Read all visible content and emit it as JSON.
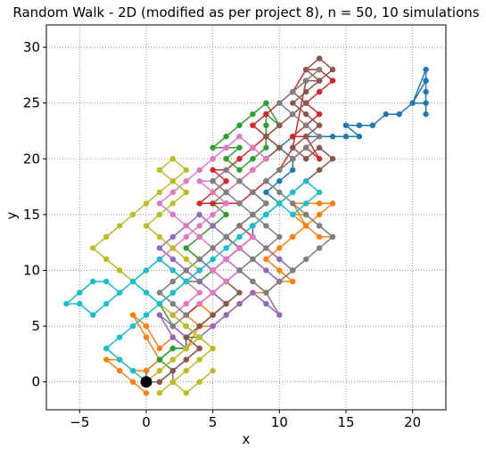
{
  "chart_data": {
    "type": "line",
    "title": "Random Walk - 2D (modified as per project 8), n = 50, 10 simulations",
    "xlabel": "x",
    "ylabel": "y",
    "xlim": [
      -7.5,
      22.5
    ],
    "ylim": [
      -2.5,
      32.0
    ],
    "xticks": [
      -5,
      0,
      5,
      10,
      15,
      20
    ],
    "yticks": [
      0,
      5,
      10,
      15,
      20,
      25,
      30
    ],
    "xtick_labels": [
      "−5",
      "0",
      "5",
      "10",
      "15",
      "20"
    ],
    "ytick_labels": [
      "0",
      "5",
      "10",
      "15",
      "20",
      "25",
      "30"
    ],
    "grid": true,
    "origin_marker": {
      "x": 0,
      "y": 0,
      "color": "#000000"
    },
    "series": [
      {
        "color": "#1f77b4",
        "x": [
          0,
          0,
          1,
          2,
          3,
          3,
          4,
          5,
          6,
          5,
          6,
          7,
          6,
          7,
          8,
          8,
          9,
          10,
          9,
          10,
          11,
          11,
          10,
          11,
          12,
          13,
          14,
          15,
          16,
          15,
          16,
          17,
          18,
          19,
          20,
          21,
          21,
          21,
          20,
          21,
          21,
          21
        ],
        "y": [
          0,
          1,
          2,
          3,
          3,
          4,
          5,
          6,
          7,
          8,
          9,
          10,
          11,
          12,
          13,
          14,
          15,
          16,
          17,
          18,
          19,
          20,
          21,
          22,
          22,
          22,
          22,
          22,
          22,
          23,
          23,
          23,
          24,
          24,
          25,
          25,
          26,
          28,
          25,
          27,
          24,
          27
        ]
      },
      {
        "color": "#ff7f0e",
        "x": [
          0,
          -1,
          -2,
          -3,
          -2,
          -3,
          -2,
          -1,
          0,
          1,
          0,
          -1,
          0,
          1,
          2,
          3,
          4,
          5,
          4,
          3,
          4,
          5,
          6,
          7,
          8,
          9,
          10,
          11,
          10,
          9,
          10,
          11,
          12,
          13,
          14,
          13,
          12,
          11,
          12,
          11,
          12,
          13,
          14,
          13,
          12,
          11
        ],
        "y": [
          -1,
          0,
          1,
          2,
          2,
          3,
          2,
          1,
          1,
          2,
          4,
          6,
          5,
          3,
          4,
          3,
          5,
          6,
          7,
          6,
          5,
          5,
          6,
          7,
          8,
          8,
          9,
          9,
          10,
          11,
          12,
          13,
          14,
          13,
          13,
          14,
          15,
          15,
          14,
          16,
          16,
          16,
          16,
          15,
          14,
          13
        ]
      },
      {
        "color": "#2ca02c",
        "x": [
          0,
          1,
          2,
          1,
          2,
          3,
          4,
          3,
          2,
          1,
          2,
          3,
          4,
          5,
          4,
          3,
          4,
          5,
          6,
          5,
          6,
          7,
          8,
          9,
          10,
          9,
          9,
          9,
          10,
          9,
          8,
          7,
          6,
          5,
          6,
          7,
          6,
          7,
          8,
          9,
          9,
          10
        ],
        "y": [
          0,
          0,
          1,
          2,
          3,
          3,
          4,
          4,
          5,
          7,
          8,
          9,
          9,
          10,
          11,
          12,
          13,
          14,
          15,
          16,
          17,
          18,
          19,
          20,
          21,
          22,
          23,
          24,
          23,
          25,
          24,
          23,
          22,
          21,
          21,
          21,
          20,
          19,
          20,
          21,
          22,
          23
        ]
      },
      {
        "color": "#d62728",
        "x": [
          3,
          4,
          5,
          6,
          5,
          6,
          7,
          8,
          7,
          8,
          9,
          8,
          9,
          10,
          11,
          12,
          13,
          12,
          11,
          12,
          13,
          12,
          13,
          14,
          13,
          12,
          11,
          10,
          9,
          8,
          9,
          8,
          7,
          6,
          5,
          6,
          5,
          4,
          5,
          6,
          7,
          8,
          9,
          10,
          11,
          12
        ],
        "y": [
          6,
          7,
          8,
          9,
          10,
          11,
          12,
          13,
          14,
          15,
          16,
          17,
          18,
          19,
          20,
          21,
          20,
          22,
          22,
          23,
          24,
          25,
          26,
          27,
          28,
          28,
          26,
          25,
          24,
          23,
          22,
          21,
          20,
          19,
          19,
          18,
          17,
          16,
          16,
          16,
          16,
          17,
          18,
          19,
          21,
          27
        ]
      },
      {
        "color": "#9467bd",
        "x": [
          2,
          2,
          3,
          4,
          3,
          2,
          1,
          2,
          3,
          4,
          5,
          6,
          7,
          8,
          9,
          10,
          9,
          8,
          7,
          6,
          7,
          8,
          9,
          10,
          11,
          10,
          9,
          8,
          7,
          6,
          5,
          4,
          5,
          6,
          7,
          6,
          5,
          4,
          3,
          2,
          1,
          2,
          3,
          4,
          5,
          6
        ],
        "y": [
          0,
          1,
          2,
          3,
          4,
          5,
          6,
          4,
          3,
          4,
          5,
          6,
          7,
          8,
          7,
          6,
          8,
          9,
          10,
          11,
          12,
          13,
          12,
          11,
          10,
          9,
          10,
          11,
          12,
          13,
          12,
          11,
          10,
          11,
          12,
          13,
          14,
          15,
          14,
          13,
          12,
          11,
          10,
          9,
          8,
          7
        ]
      },
      {
        "color": "#8c564b",
        "x": [
          1,
          2,
          3,
          4,
          3,
          4,
          5,
          6,
          7,
          6,
          5,
          6,
          7,
          6,
          7,
          8,
          9,
          8,
          7,
          8,
          9,
          10,
          9,
          10,
          11,
          12,
          11,
          12,
          13,
          12,
          13,
          14,
          13,
          12,
          11,
          12,
          13,
          12,
          11,
          12,
          13,
          14,
          13,
          12,
          11,
          10
        ],
        "y": [
          0,
          1,
          2,
          3,
          4,
          5,
          6,
          7,
          8,
          9,
          10,
          11,
          12,
          13,
          14,
          15,
          16,
          17,
          18,
          19,
          20,
          21,
          22,
          23,
          24,
          25,
          26,
          27,
          27,
          28,
          29,
          28,
          27,
          26,
          25,
          24,
          23,
          22,
          21,
          20,
          21,
          20,
          19,
          18,
          17,
          16
        ]
      },
      {
        "color": "#e377c2",
        "x": [
          1,
          2,
          3,
          4,
          3,
          2,
          3,
          4,
          3,
          2,
          1,
          2,
          3,
          4,
          5,
          6,
          5,
          4,
          5,
          6,
          7,
          8,
          9,
          8,
          7,
          6,
          5,
          4,
          3,
          2,
          1,
          2,
          3,
          4,
          5,
          6,
          7,
          6,
          5,
          4,
          5,
          6,
          5,
          6,
          7,
          8
        ],
        "y": [
          1,
          2,
          3,
          4,
          5,
          6,
          7,
          8,
          9,
          10,
          11,
          12,
          13,
          14,
          15,
          16,
          17,
          18,
          18,
          17,
          18,
          19,
          20,
          21,
          22,
          21,
          20,
          19,
          18,
          17,
          16,
          15,
          14,
          13,
          12,
          11,
          10,
          9,
          8,
          7,
          8,
          9,
          10,
          11,
          12,
          13
        ]
      },
      {
        "color": "#7f7f7f",
        "x": [
          2,
          3,
          2,
          1,
          2,
          3,
          4,
          5,
          6,
          7,
          8,
          9,
          8,
          7,
          6,
          5,
          6,
          7,
          8,
          9,
          10,
          9,
          8,
          7,
          8,
          9,
          10,
          11,
          12,
          13,
          14,
          13,
          12,
          11,
          10,
          9,
          10,
          11,
          12,
          13,
          12,
          11,
          10,
          11,
          12,
          13
        ],
        "y": [
          5,
          6,
          7,
          8,
          9,
          10,
          11,
          12,
          13,
          14,
          15,
          16,
          17,
          18,
          19,
          18,
          17,
          16,
          15,
          14,
          13,
          12,
          11,
          10,
          9,
          8,
          9,
          10,
          11,
          12,
          13,
          14,
          15,
          16,
          17,
          18,
          19,
          20,
          21,
          22,
          23,
          24,
          25,
          26,
          27,
          28
        ]
      },
      {
        "color": "#bcbd22",
        "x": [
          0,
          1,
          2,
          3,
          4,
          3,
          2,
          1,
          0,
          -1,
          -2,
          -3,
          -4,
          -3,
          -2,
          -1,
          0,
          1,
          2,
          3,
          2,
          1,
          2,
          3,
          2,
          1,
          0,
          1,
          2,
          3,
          4,
          3,
          2,
          1,
          2,
          3,
          4,
          5,
          4,
          3,
          2,
          1,
          2,
          3,
          4,
          5
        ],
        "y": [
          0,
          1,
          2,
          3,
          4,
          5,
          6,
          7,
          8,
          9,
          10,
          11,
          12,
          13,
          14,
          15,
          16,
          17,
          18,
          19,
          20,
          19,
          18,
          17,
          16,
          15,
          14,
          13,
          12,
          11,
          10,
          9,
          8,
          7,
          6,
          5,
          4,
          3,
          2,
          1,
          0,
          -1,
          0,
          -1,
          0,
          1
        ]
      },
      {
        "color": "#17becf",
        "x": [
          0,
          -1,
          -2,
          -3,
          -2,
          -1,
          0,
          1,
          0,
          -1,
          -2,
          -3,
          -4,
          -5,
          -6,
          -5,
          -4,
          -3,
          -2,
          -1,
          0,
          1,
          2,
          3,
          4,
          5,
          6,
          7,
          8,
          9,
          10,
          11,
          12,
          13,
          12,
          11,
          10,
          9,
          8,
          7,
          6,
          5,
          4,
          3,
          2,
          1
        ],
        "y": [
          0,
          1,
          2,
          3,
          4,
          5,
          6,
          7,
          8,
          9,
          8,
          7,
          6,
          7,
          7,
          8,
          9,
          9,
          8,
          9,
          10,
          11,
          10,
          9,
          10,
          11,
          12,
          13,
          14,
          15,
          16,
          15,
          16,
          17,
          18,
          17,
          16,
          15,
          14,
          13,
          12,
          11,
          10,
          9,
          8,
          7
        ]
      }
    ]
  }
}
